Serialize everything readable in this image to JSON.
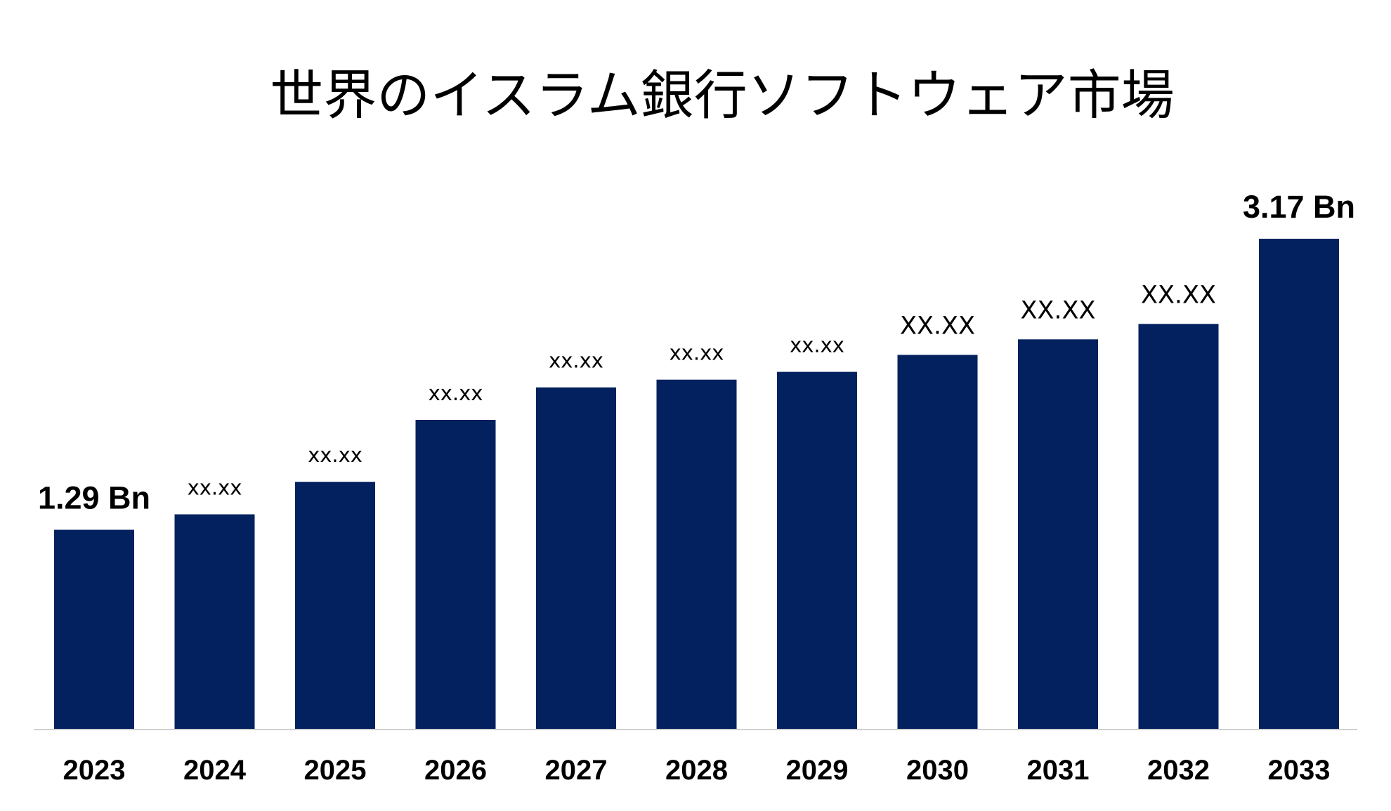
{
  "chart_data": {
    "type": "bar",
    "title": "世界のイスラム銀行ソフトウェア市場",
    "categories": [
      "2023",
      "2024",
      "2025",
      "2026",
      "2027",
      "2028",
      "2029",
      "2030",
      "2031",
      "2032",
      "2033"
    ],
    "values": [
      1.29,
      1.39,
      1.6,
      2.0,
      2.21,
      2.26,
      2.31,
      2.42,
      2.52,
      2.62,
      3.17
    ],
    "data_labels": [
      "1.29 Bn",
      "xx.xx",
      "xx.xx",
      "xx.xx",
      "xx.xx",
      "xx.xx",
      "xx.xx",
      "XX.XX",
      "XX.XX",
      "XX.XX",
      "3.17 Bn"
    ],
    "ylim": [
      0,
      3.17
    ],
    "grid": false,
    "bar_color": "#03215e",
    "axis_color": "#d0d0d0"
  }
}
